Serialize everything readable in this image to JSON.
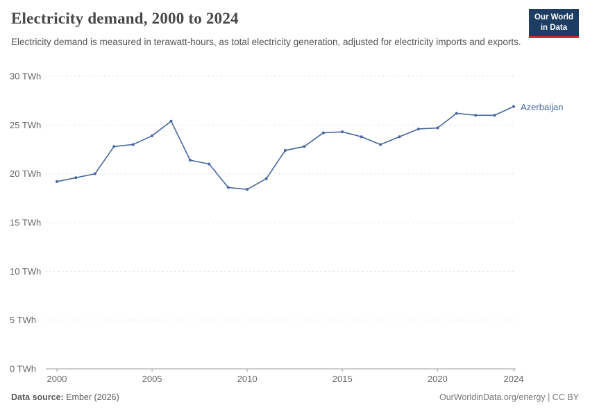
{
  "header": {
    "title": "Electricity demand, 2000 to 2024",
    "subtitle": "Electricity demand is measured in terawatt-hours, as total electricity generation, adjusted for electricity imports and exports.",
    "logo": {
      "line1": "Our World",
      "line2": "in Data"
    }
  },
  "chart_data": {
    "type": "line",
    "title": "Electricity demand, 2000 to 2024",
    "unit": "TWh",
    "xlabel": "",
    "ylabel": "TWh",
    "ylim": [
      0,
      30
    ],
    "yticks": [
      0,
      5,
      10,
      15,
      20,
      25,
      30
    ],
    "xticks": [
      2000,
      2005,
      2010,
      2015,
      2020,
      2024
    ],
    "grid": "dotted-horizontal",
    "legend_position": "end-of-line",
    "x": [
      2000,
      2001,
      2002,
      2003,
      2004,
      2005,
      2006,
      2007,
      2008,
      2009,
      2010,
      2011,
      2012,
      2013,
      2014,
      2015,
      2016,
      2017,
      2018,
      2019,
      2020,
      2021,
      2022,
      2023,
      2024
    ],
    "series": [
      {
        "name": "Azerbaijan",
        "color": "#46669e",
        "values": [
          19.2,
          19.6,
          20.0,
          22.8,
          23.0,
          23.9,
          25.4,
          21.4,
          21.0,
          18.6,
          18.4,
          19.5,
          22.4,
          22.8,
          24.2,
          24.3,
          23.8,
          23.0,
          23.8,
          24.6,
          24.7,
          26.2,
          26.0,
          26.0,
          26.9
        ]
      }
    ]
  },
  "footer": {
    "source_label": "Data source:",
    "source_value": "Ember (2026)",
    "right_text": "OurWorldinData.org/energy | CC BY"
  }
}
